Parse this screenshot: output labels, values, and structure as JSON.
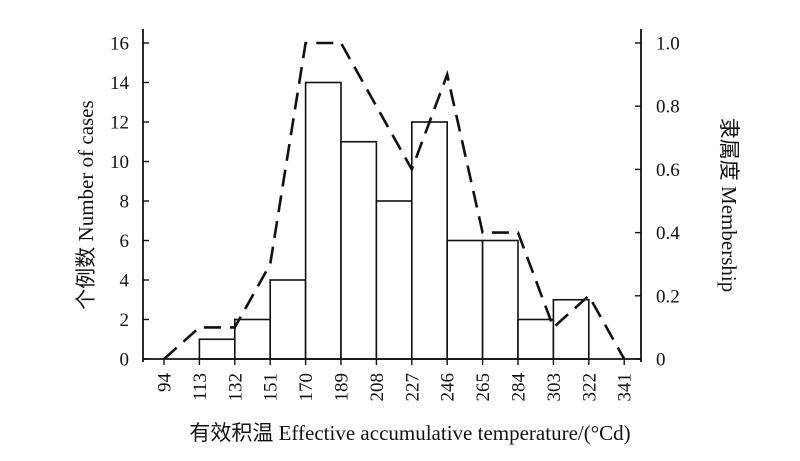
{
  "chart_data": {
    "type": "bar",
    "x_ticks": [
      "94",
      "113",
      "132",
      "151",
      "170",
      "189",
      "208",
      "227",
      "246",
      "265",
      "284",
      "303",
      "322",
      "341"
    ],
    "bins": [
      {
        "from": "94",
        "to": "113",
        "count": 0
      },
      {
        "from": "113",
        "to": "132",
        "count": 1
      },
      {
        "from": "132",
        "to": "151",
        "count": 2
      },
      {
        "from": "151",
        "to": "170",
        "count": 4
      },
      {
        "from": "170",
        "to": "189",
        "count": 14
      },
      {
        "from": "189",
        "to": "208",
        "count": 11
      },
      {
        "from": "208",
        "to": "227",
        "count": 8
      },
      {
        "from": "227",
        "to": "246",
        "count": 12
      },
      {
        "from": "246",
        "to": "265",
        "count": 6
      },
      {
        "from": "265",
        "to": "284",
        "count": 6
      },
      {
        "from": "284",
        "to": "303",
        "count": 2
      },
      {
        "from": "303",
        "to": "322",
        "count": 3
      },
      {
        "from": "322",
        "to": "341",
        "count": 0
      }
    ],
    "membership_line": {
      "x": [
        "94",
        "113",
        "132",
        "151",
        "170",
        "189",
        "208",
        "227",
        "246",
        "265",
        "284",
        "303",
        "322",
        "341"
      ],
      "y": [
        0,
        0.1,
        0.1,
        0.3,
        1.0,
        1.0,
        0.8,
        0.6,
        0.9,
        0.4,
        0.4,
        0.1,
        0.2,
        0
      ]
    },
    "xlabel": "有效积温 Effective accumulative temperature/(°Cd)",
    "ylabel_left": "个例数 Number of cases",
    "ylabel_right": "隶属度 Membership",
    "ylim_left": [
      0,
      16
    ],
    "ylim_right": [
      0,
      1.0
    ],
    "y_ticks_left": [
      "0",
      "2",
      "4",
      "6",
      "8",
      "10",
      "12",
      "14",
      "16"
    ],
    "y_ticks_right": [
      "0",
      "0.2",
      "0.4",
      "0.6",
      "0.8",
      "1.0"
    ],
    "y_ticks_right_values": [
      0,
      0.2,
      0.4,
      0.6,
      0.8,
      1.0
    ],
    "grid": false,
    "colors": {
      "bar_fill": "#ffffff",
      "bar_stroke": "#111111",
      "line": "#111111"
    }
  }
}
